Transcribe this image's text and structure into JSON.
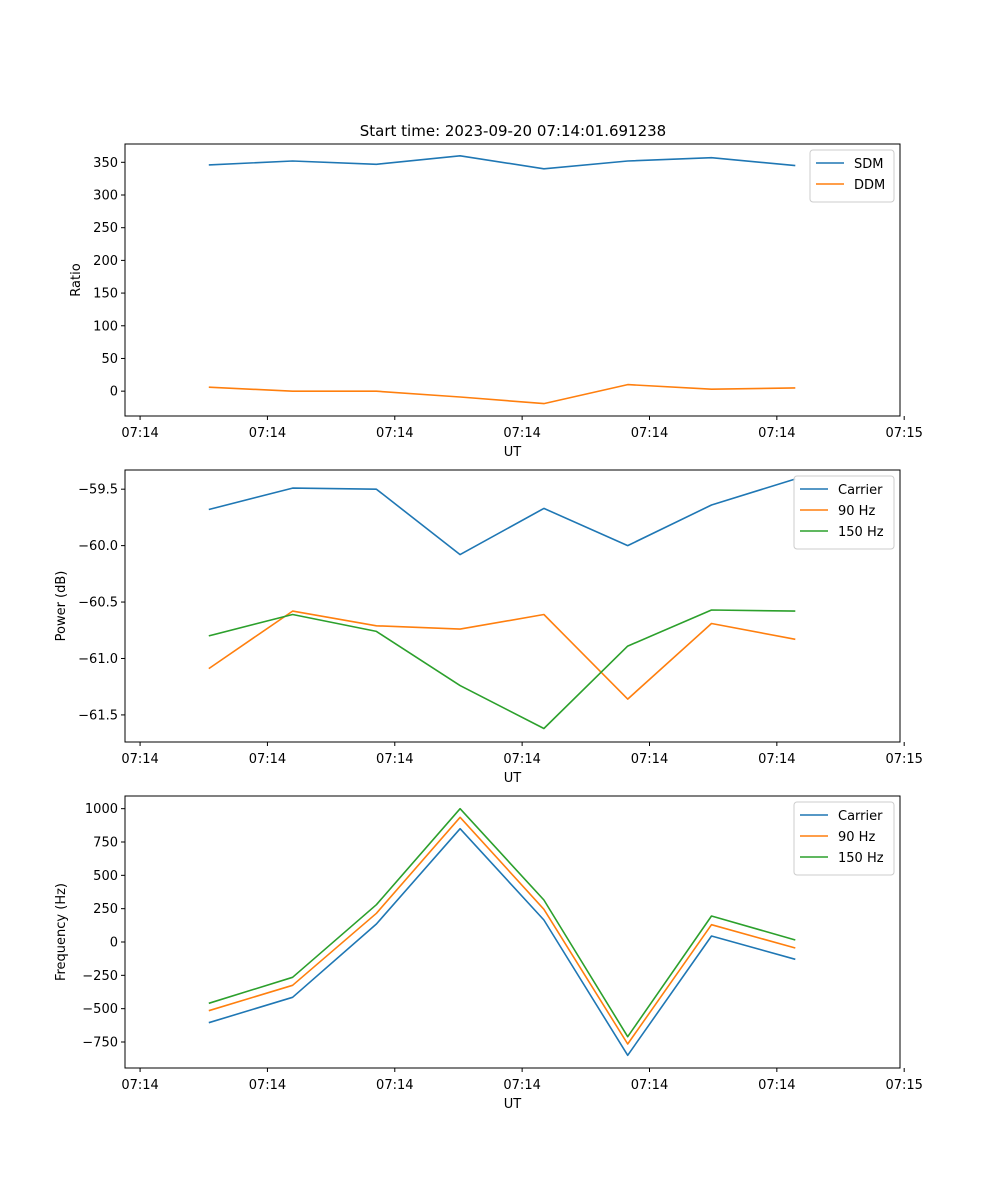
{
  "figure_title": "Start time: 2023-09-20 07:14:01.691238",
  "chart_data": [
    {
      "type": "line",
      "title": "Start time: 2023-09-20 07:14:01.691238",
      "xlabel": "UT",
      "ylabel": "Ratio",
      "x_ticks": [
        "07:14",
        "07:14",
        "07:14",
        "07:14",
        "07:14",
        "07:14",
        "07:15"
      ],
      "x_points": [
        1,
        2,
        3,
        4,
        5,
        6,
        7,
        8
      ],
      "xlim": [
        0,
        9.25
      ],
      "ylim": [
        -38,
        378
      ],
      "y_ticks": [
        0,
        50,
        100,
        150,
        200,
        250,
        300,
        350
      ],
      "y_tick_labels": [
        "0",
        "50",
        "100",
        "150",
        "200",
        "250",
        "300",
        "350"
      ],
      "legend_position": "top-right",
      "series": [
        {
          "name": "SDM",
          "color": "#1f77b4",
          "values": [
            346,
            352,
            347,
            360,
            340,
            352,
            357,
            345
          ]
        },
        {
          "name": "DDM",
          "color": "#ff7f0e",
          "values": [
            6,
            0,
            0,
            -9,
            -19,
            10,
            3,
            5
          ]
        }
      ]
    },
    {
      "type": "line",
      "xlabel": "UT",
      "ylabel": "Power (dB)",
      "x_ticks": [
        "07:14",
        "07:14",
        "07:14",
        "07:14",
        "07:14",
        "07:14",
        "07:15"
      ],
      "x_points": [
        1,
        2,
        3,
        4,
        5,
        6,
        7,
        8
      ],
      "xlim": [
        0,
        9.25
      ],
      "ylim": [
        -61.74,
        -59.33
      ],
      "y_ticks": [
        -61.5,
        -61.0,
        -60.5,
        -60.0,
        -59.5
      ],
      "y_tick_labels": [
        "−61.5",
        "−61.0",
        "−60.5",
        "−60.0",
        "−59.5"
      ],
      "legend_position": "top-right",
      "series": [
        {
          "name": "Carrier",
          "color": "#1f77b4",
          "values": [
            -59.68,
            -59.49,
            -59.5,
            -60.08,
            -59.67,
            -60.0,
            -59.64,
            -59.41
          ]
        },
        {
          "name": "90 Hz",
          "color": "#ff7f0e",
          "values": [
            -61.09,
            -60.58,
            -60.71,
            -60.74,
            -60.61,
            -61.36,
            -60.69,
            -60.83
          ]
        },
        {
          "name": "150 Hz",
          "color": "#2ca02c",
          "values": [
            -60.8,
            -60.61,
            -60.76,
            -61.24,
            -61.62,
            -60.89,
            -60.57,
            -60.58
          ]
        }
      ]
    },
    {
      "type": "line",
      "xlabel": "UT",
      "ylabel": "Frequency (Hz)",
      "x_ticks": [
        "07:14",
        "07:14",
        "07:14",
        "07:14",
        "07:14",
        "07:14",
        "07:15"
      ],
      "x_points": [
        1,
        2,
        3,
        4,
        5,
        6,
        7,
        8
      ],
      "xlim": [
        0,
        9.25
      ],
      "ylim": [
        -945,
        1095
      ],
      "y_ticks": [
        -750,
        -500,
        -250,
        0,
        250,
        500,
        750,
        1000
      ],
      "y_tick_labels": [
        "−750",
        "−500",
        "−250",
        "0",
        "250",
        "500",
        "750",
        "1000"
      ],
      "legend_position": "top-right",
      "series": [
        {
          "name": "Carrier",
          "color": "#1f77b4",
          "values": [
            -605,
            -415,
            135,
            850,
            165,
            -850,
            45,
            -130
          ]
        },
        {
          "name": "90 Hz",
          "color": "#ff7f0e",
          "values": [
            -515,
            -325,
            215,
            935,
            245,
            -765,
            130,
            -45
          ]
        },
        {
          "name": "150 Hz",
          "color": "#2ca02c",
          "values": [
            -460,
            -265,
            280,
            1000,
            315,
            -710,
            195,
            15
          ]
        }
      ]
    }
  ]
}
